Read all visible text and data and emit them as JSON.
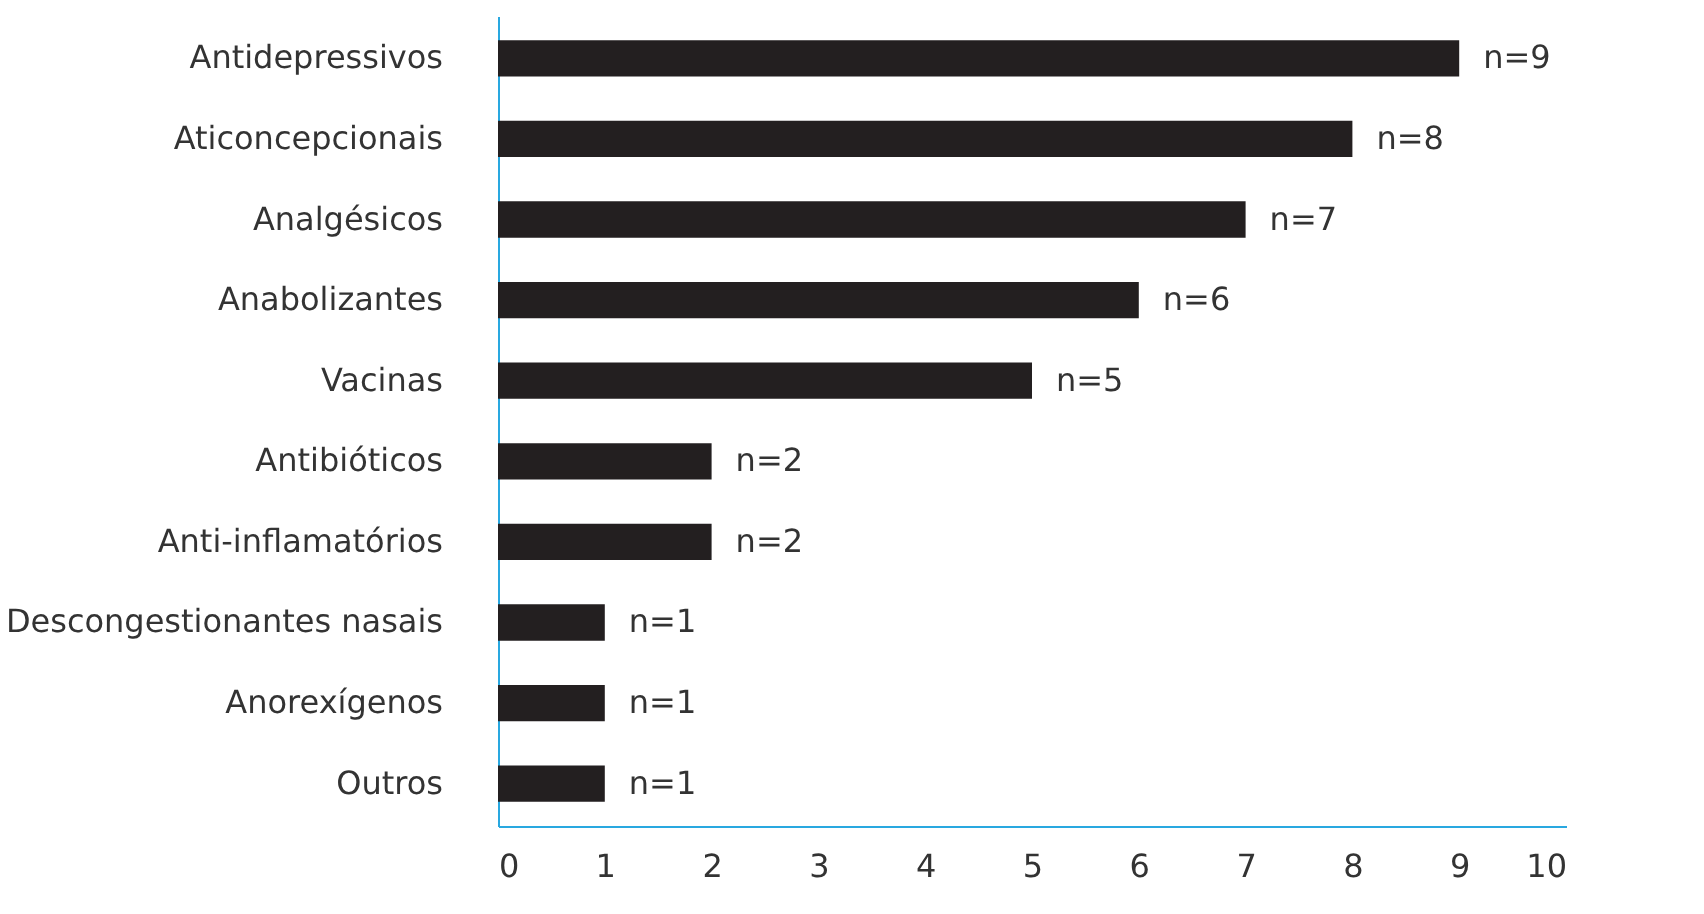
{
  "chart_data": {
    "type": "bar",
    "orientation": "horizontal",
    "categories": [
      "Antidepressivos",
      "Aticoncepcionais",
      "Analgésicos",
      "Anabolizantes",
      "Vacinas",
      "Antibióticos",
      "Anti-inflamatórios",
      "Descongestionantes nasais",
      "Anorexígenos",
      "Outros"
    ],
    "values": [
      9,
      8,
      7,
      6,
      5,
      2,
      2,
      1,
      1,
      1
    ],
    "value_labels": [
      "n=9",
      "n=8",
      "n=7",
      "n=6",
      "n=5",
      "n=2",
      "n=2",
      "n=1",
      "n=1",
      "n=1"
    ],
    "color": "#231f20",
    "xlim": [
      0,
      10
    ],
    "xticks": [
      0,
      1,
      2,
      3,
      4,
      5,
      6,
      7,
      8,
      9,
      10
    ],
    "grid": false
  }
}
